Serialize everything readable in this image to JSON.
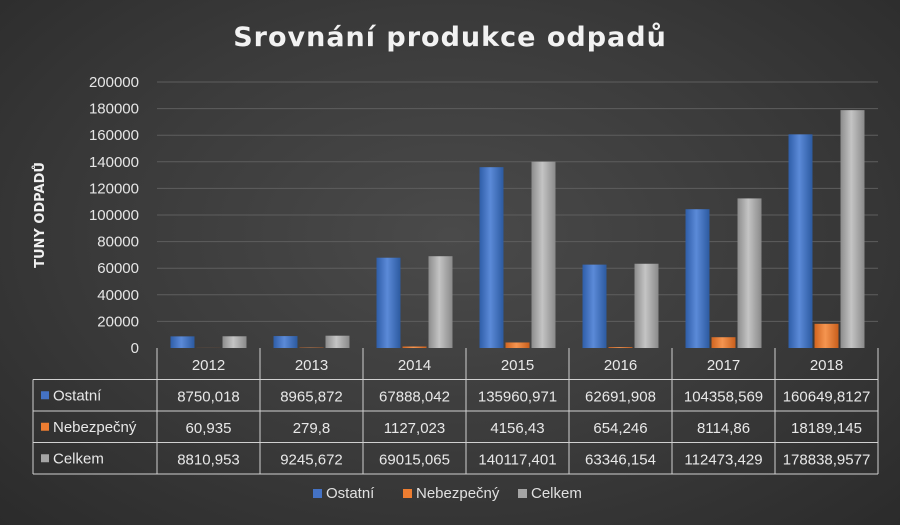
{
  "chart_data": {
    "type": "bar",
    "title": "Srovnání produkce odpadů",
    "ylabel": "TUNY ODPADŮ",
    "xlabel": "",
    "ylim": [
      0,
      200000
    ],
    "yticks": [
      "0",
      "20000",
      "40000",
      "60000",
      "80000",
      "100000",
      "120000",
      "140000",
      "160000",
      "180000",
      "200000"
    ],
    "categories": [
      "2012",
      "2013",
      "2014",
      "2015",
      "2016",
      "2017",
      "2018"
    ],
    "series": [
      {
        "name": "Ostatní",
        "color": "#4472c4",
        "values": [
          8750.018,
          8965.872,
          67888.042,
          135960.971,
          62691.908,
          104358.569,
          160649.8127
        ],
        "labels": [
          "8750,018",
          "8965,872",
          "67888,042",
          "135960,971",
          "62691,908",
          "104358,569",
          "160649,8127"
        ]
      },
      {
        "name": "Nebezpečný",
        "color": "#ed7d31",
        "values": [
          60.935,
          279.8,
          1127.023,
          4156.43,
          654.246,
          8114.86,
          18189.145
        ],
        "labels": [
          "60,935",
          "279,8",
          "1127,023",
          "4156,43",
          "654,246",
          "8114,86",
          "18189,145"
        ]
      },
      {
        "name": "Celkem",
        "color": "#a5a5a5",
        "values": [
          8810.953,
          9245.672,
          69015.065,
          140117.401,
          63346.154,
          112473.429,
          178838.9577
        ],
        "labels": [
          "8810,953",
          "9245,672",
          "69015,065",
          "140117,401",
          "63346,154",
          "112473,429",
          "178838,9577"
        ]
      }
    ],
    "grid": true,
    "legend_position": "bottom",
    "data_table": true
  }
}
